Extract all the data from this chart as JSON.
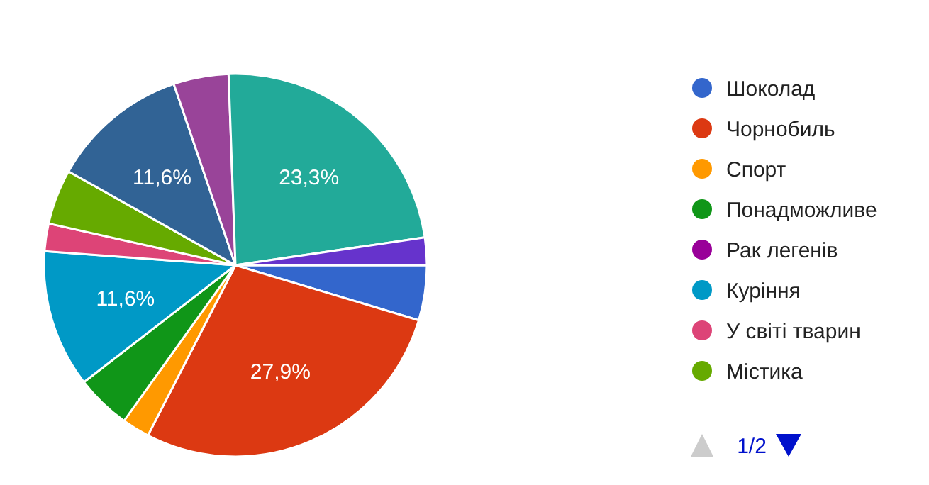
{
  "chart_data": {
    "type": "pie",
    "categories": [
      "Шоколад",
      "Чорнобиль",
      "Спорт",
      "Понадможливе",
      "Рак легенів",
      "Куріння",
      "У світі тварин",
      "Містика",
      null,
      null,
      null,
      null
    ],
    "values": [
      4.65,
      27.91,
      2.33,
      4.65,
      0,
      11.63,
      2.33,
      4.65,
      11.63,
      4.65,
      23.25,
      2.32
    ],
    "colors": [
      "#3366cc",
      "#dc3912",
      "#ff9900",
      "#109618",
      "#990099",
      "#0099c6",
      "#dd4477",
      "#66aa00",
      "#316395",
      "#994499",
      "#22aa99",
      "#6633cc"
    ],
    "value_labels": [
      null,
      "27,9%",
      null,
      null,
      null,
      "11,6%",
      null,
      null,
      "11,6%",
      null,
      "23,3%",
      null
    ],
    "legend": "right",
    "annotations": [
      "1/2"
    ]
  }
}
